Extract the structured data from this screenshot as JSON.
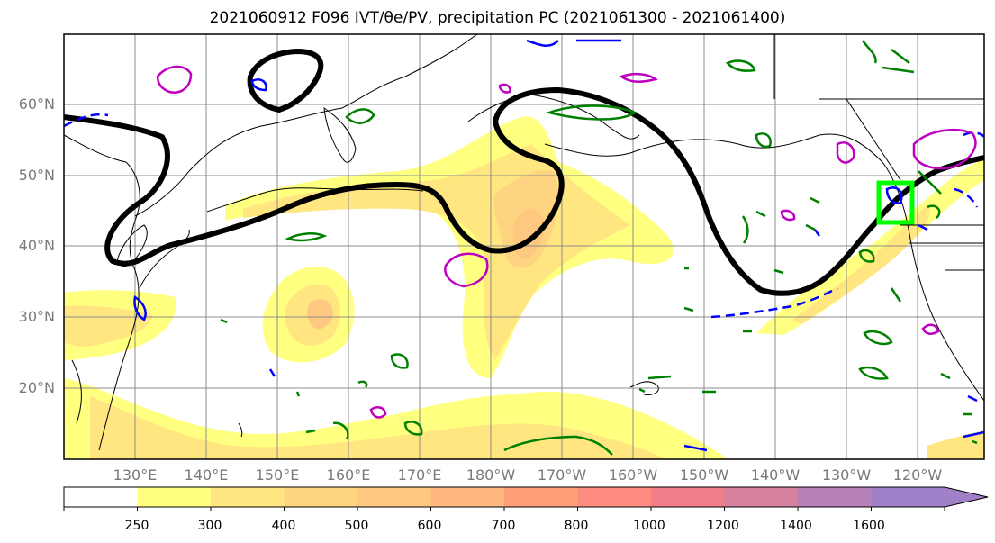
{
  "title": "2021060912 F096 IVT/θe/PV, precipitation PC (2021061300 - 2021061400)",
  "latitude_labels": [
    "60°N",
    "50°N",
    "40°N",
    "30°N",
    "20°N"
  ],
  "longitude_labels": [
    "130°E",
    "140°E",
    "150°E",
    "160°E",
    "170°E",
    "180°W",
    "170°W",
    "160°W",
    "150°W",
    "140°W",
    "130°W",
    "120°W"
  ],
  "colorbar": {
    "levels": [
      "250",
      "300",
      "400",
      "500",
      "600",
      "700",
      "800",
      "1000",
      "1200",
      "1400",
      "1600"
    ],
    "colors": [
      "#ffffff",
      "#ffff80",
      "#ffe680",
      "#ffd480",
      "#ffc880",
      "#ffb880",
      "#ffa07a",
      "#ff8c80",
      "#f07f8a",
      "#d880a0",
      "#b880b8",
      "#a080c8"
    ],
    "extend": "max"
  },
  "legend_colors": {
    "jet_contour": "#000000",
    "theta_e": "#008000",
    "pv_negative": "#0000ff",
    "pv_positive": "#c000c0",
    "highlight_box": "#00ff00"
  }
}
